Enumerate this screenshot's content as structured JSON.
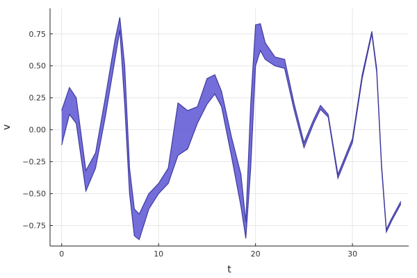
{
  "chart_data": {
    "type": "area",
    "xlabel": "t",
    "ylabel": "v",
    "xlim": [
      -1.2,
      35.8
    ],
    "ylim": [
      -0.91,
      0.95
    ],
    "xticks": [
      0,
      10,
      20,
      30
    ],
    "xtick_labels": [
      "0",
      "10",
      "20",
      "30"
    ],
    "yticks": [
      -0.75,
      -0.5,
      -0.25,
      0,
      0.25,
      0.5,
      0.75
    ],
    "ytick_labels": [
      "−0.75",
      "−0.50",
      "−0.25",
      "0.00",
      "0.25",
      "0.50",
      "0.75"
    ],
    "grid": true,
    "legend": "none",
    "colors": {
      "band": "#5a55d2",
      "band_dark": "#3f3a9e"
    },
    "series": [
      {
        "x": [
          0,
          0.8,
          1.5,
          2.5,
          3.5,
          4.5,
          5.5,
          6,
          6.5,
          7,
          7.5,
          8,
          9,
          10,
          11,
          12,
          13,
          14,
          15,
          15.8,
          16.5,
          17.5,
          18.5,
          19,
          19.5,
          20,
          20.5,
          21,
          22,
          23,
          24,
          25,
          26,
          26.7,
          27.5,
          28.5,
          30,
          31,
          32,
          32.5,
          33,
          33.5,
          34,
          35
        ],
        "lower": [
          -0.12,
          0.12,
          0.05,
          -0.48,
          -0.3,
          0.1,
          0.55,
          0.78,
          0.2,
          -0.5,
          -0.83,
          -0.86,
          -0.62,
          -0.5,
          -0.42,
          -0.2,
          -0.15,
          0.05,
          0.2,
          0.28,
          0.18,
          -0.2,
          -0.6,
          -0.85,
          -0.3,
          0.5,
          0.62,
          0.55,
          0.5,
          0.48,
          0.15,
          -0.14,
          0.05,
          0.16,
          0.1,
          -0.38,
          -0.1,
          0.4,
          0.75,
          0.45,
          -0.3,
          -0.8,
          -0.72,
          -0.58
        ],
        "upper": [
          0.15,
          0.33,
          0.25,
          -0.32,
          -0.18,
          0.25,
          0.7,
          0.88,
          0.5,
          -0.3,
          -0.62,
          -0.66,
          -0.5,
          -0.42,
          -0.3,
          0.21,
          0.15,
          0.18,
          0.4,
          0.43,
          0.3,
          -0.05,
          -0.35,
          -0.72,
          0.2,
          0.82,
          0.83,
          0.68,
          0.57,
          0.55,
          0.2,
          -0.1,
          0.08,
          0.19,
          0.12,
          -0.35,
          -0.07,
          0.43,
          0.77,
          0.48,
          -0.27,
          -0.78,
          -0.7,
          -0.56
        ]
      }
    ]
  }
}
